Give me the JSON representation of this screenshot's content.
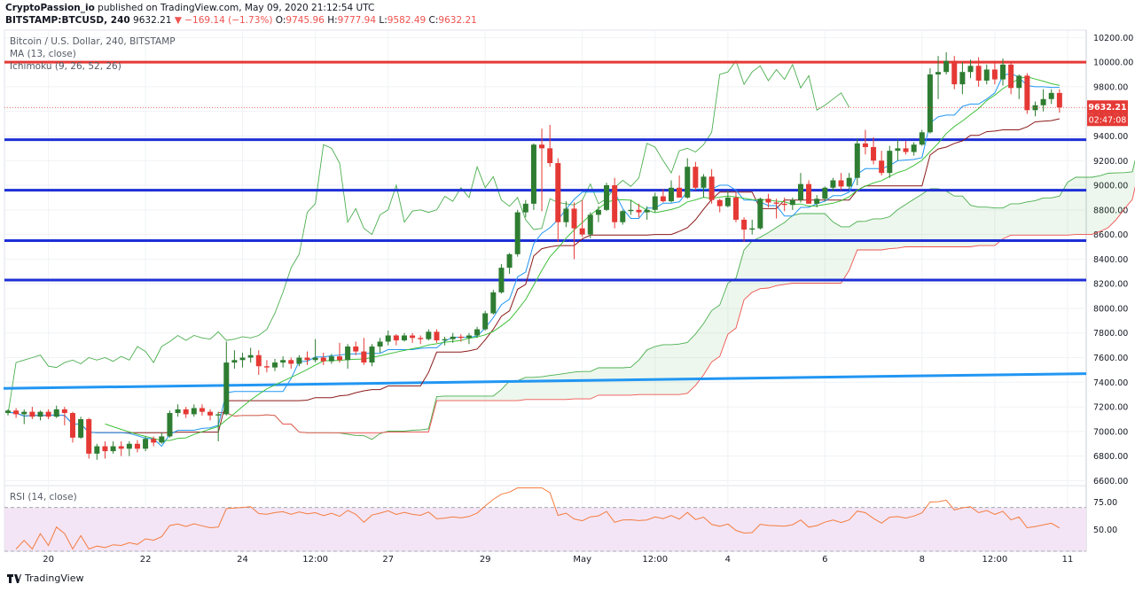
{
  "header": {
    "publisher": "CryptoPassion_io",
    "published_text": "published on TradingView.com, May 09, 2020 21:12:54 UTC",
    "symbol": "BITSTAMP:BTCUSD, 240",
    "last": "9632.21",
    "change": "▼ −169.14 (−1.73%)",
    "o_label": "O:",
    "o": "9745.96",
    "h_label": "H:",
    "h": "9777.94",
    "l_label": "L:",
    "l": "9582.49",
    "c_label": "C:",
    "c": "9632.21"
  },
  "legend": {
    "title": "Bitcoin / U.S. Dollar, 240, BITSTAMP",
    "ma": "MA (13, close)",
    "ichimoku": "Ichimoku (9, 26, 52, 26)",
    "rsi": "RSI (14, close)"
  },
  "footer": {
    "brand": "TradingView"
  },
  "colors": {
    "up": "#2e7d32",
    "down": "#e53935",
    "red_line": "#e53935",
    "blue_line": "#1d2fd6",
    "trend": "#2196f3",
    "ma": "#3fc13a",
    "conversion": "#2196f3",
    "base": "#8b1a1a",
    "lagging": "#4caf50",
    "span_a": "#4caf50",
    "span_b": "#ef5350",
    "rsi": "#f57c40",
    "rsi_band": "#f3e5f5"
  },
  "chart_data": {
    "type": "candlestick",
    "title": "Bitcoin / U.S. Dollar, 240, BITSTAMP",
    "ylim": [
      6560,
      10260
    ],
    "y_ticks": [
      "10200.00",
      "10000.00",
      "9800.00",
      "9600.00",
      "9400.00",
      "9200.00",
      "9000.00",
      "8800.00",
      "8600.00",
      "8400.00",
      "8200.00",
      "8000.00",
      "7800.00",
      "7600.00",
      "7400.00",
      "7200.00",
      "7000.00",
      "6800.00",
      "6600.00"
    ],
    "x_ticks": [
      {
        "label": "20",
        "i": 5
      },
      {
        "label": "22",
        "i": 17
      },
      {
        "label": "24",
        "i": 29
      },
      {
        "label": "12:00",
        "i": 38
      },
      {
        "label": "27",
        "i": 47
      },
      {
        "label": "29",
        "i": 59
      },
      {
        "label": "May",
        "i": 71
      },
      {
        "label": "12:00",
        "i": 80
      },
      {
        "label": "4",
        "i": 89
      },
      {
        "label": "6",
        "i": 101
      },
      {
        "label": "8",
        "i": 113
      },
      {
        "label": "12:00",
        "i": 122
      },
      {
        "label": "11",
        "i": 131
      }
    ],
    "bars_total": 135,
    "price_label": "9632.21",
    "countdown": "02:47:08",
    "horizontal_levels": [
      {
        "name": "resistance",
        "value": 10000,
        "color": "red"
      },
      {
        "name": "level",
        "value": 9370,
        "color": "blue"
      },
      {
        "name": "level",
        "value": 8960,
        "color": "blue"
      },
      {
        "name": "level",
        "value": 8550,
        "color": "blue"
      },
      {
        "name": "level",
        "value": 8230,
        "color": "blue"
      }
    ],
    "trendline": {
      "from": [
        0,
        7350
      ],
      "to": [
        134,
        7470
      ]
    },
    "candles": [
      [
        7150,
        7180,
        7130,
        7170
      ],
      [
        7170,
        7190,
        7110,
        7140
      ],
      [
        7140,
        7180,
        7060,
        7160
      ],
      [
        7160,
        7200,
        7100,
        7120
      ],
      [
        7120,
        7170,
        7090,
        7160
      ],
      [
        7160,
        7180,
        7100,
        7120
      ],
      [
        7120,
        7210,
        7110,
        7180
      ],
      [
        7180,
        7200,
        7050,
        7150
      ],
      [
        7150,
        7160,
        6910,
        6950
      ],
      [
        6950,
        7120,
        6940,
        7100
      ],
      [
        7100,
        7110,
        6780,
        6820
      ],
      [
        6820,
        6900,
        6770,
        6880
      ],
      [
        6880,
        6920,
        6780,
        6840
      ],
      [
        6840,
        6920,
        6820,
        6880
      ],
      [
        6880,
        6920,
        6800,
        6860
      ],
      [
        6860,
        6920,
        6800,
        6900
      ],
      [
        6900,
        6930,
        6830,
        6860
      ],
      [
        6860,
        6960,
        6840,
        6940
      ],
      [
        6940,
        6960,
        6880,
        6910
      ],
      [
        6910,
        6990,
        6900,
        6960
      ],
      [
        6960,
        7170,
        6950,
        7150
      ],
      [
        7150,
        7220,
        7120,
        7180
      ],
      [
        7180,
        7200,
        7110,
        7140
      ],
      [
        7140,
        7220,
        7120,
        7190
      ],
      [
        7190,
        7220,
        7130,
        7160
      ],
      [
        7160,
        7180,
        7090,
        7130
      ],
      [
        7130,
        7160,
        6920,
        7140
      ],
      [
        7140,
        7730,
        7130,
        7560
      ],
      [
        7560,
        7660,
        7510,
        7580
      ],
      [
        7580,
        7640,
        7520,
        7600
      ],
      [
        7600,
        7680,
        7560,
        7620
      ],
      [
        7620,
        7660,
        7460,
        7530
      ],
      [
        7530,
        7580,
        7480,
        7520
      ],
      [
        7520,
        7590,
        7490,
        7560
      ],
      [
        7560,
        7610,
        7520,
        7580
      ],
      [
        7580,
        7600,
        7510,
        7550
      ],
      [
        7550,
        7620,
        7530,
        7600
      ],
      [
        7600,
        7650,
        7540,
        7580
      ],
      [
        7580,
        7750,
        7560,
        7600
      ],
      [
        7600,
        7640,
        7540,
        7570
      ],
      [
        7570,
        7630,
        7550,
        7610
      ],
      [
        7610,
        7720,
        7560,
        7580
      ],
      [
        7580,
        7710,
        7510,
        7690
      ],
      [
        7690,
        7730,
        7620,
        7650
      ],
      [
        7650,
        7760,
        7540,
        7560
      ],
      [
        7560,
        7710,
        7530,
        7690
      ],
      [
        7690,
        7760,
        7640,
        7730
      ],
      [
        7730,
        7820,
        7700,
        7780
      ],
      [
        7780,
        7790,
        7700,
        7740
      ],
      [
        7740,
        7800,
        7730,
        7780
      ],
      [
        7780,
        7800,
        7720,
        7760
      ],
      [
        7760,
        7780,
        7710,
        7750
      ],
      [
        7750,
        7830,
        7740,
        7810
      ],
      [
        7810,
        7830,
        7720,
        7740
      ],
      [
        7740,
        7770,
        7700,
        7750
      ],
      [
        7750,
        7800,
        7720,
        7770
      ],
      [
        7770,
        7790,
        7730,
        7760
      ],
      [
        7760,
        7800,
        7710,
        7780
      ],
      [
        7780,
        7850,
        7760,
        7830
      ],
      [
        7830,
        7980,
        7820,
        7960
      ],
      [
        7960,
        8150,
        7950,
        8130
      ],
      [
        8130,
        8360,
        8120,
        8330
      ],
      [
        8330,
        8450,
        8280,
        8440
      ],
      [
        8440,
        8800,
        8420,
        8780
      ],
      [
        8780,
        8880,
        8740,
        8850
      ],
      [
        8850,
        9340,
        8800,
        9330
      ],
      [
        9330,
        9460,
        8790,
        9300
      ],
      [
        9300,
        9490,
        9150,
        9180
      ],
      [
        9180,
        9220,
        8540,
        8700
      ],
      [
        8700,
        8870,
        8660,
        8810
      ],
      [
        8810,
        8860,
        8400,
        8650
      ],
      [
        8650,
        8880,
        8580,
        8600
      ],
      [
        8600,
        8780,
        8570,
        8760
      ],
      [
        8760,
        8830,
        8700,
        8800
      ],
      [
        8800,
        9020,
        8790,
        9000
      ],
      [
        9000,
        9060,
        8650,
        8700
      ],
      [
        8700,
        8800,
        8680,
        8790
      ],
      [
        8790,
        8880,
        8760,
        8800
      ],
      [
        8800,
        8850,
        8740,
        8780
      ],
      [
        8780,
        8830,
        8720,
        8800
      ],
      [
        8800,
        8940,
        8780,
        8910
      ],
      [
        8910,
        8970,
        8860,
        8870
      ],
      [
        8870,
        9040,
        8860,
        8980
      ],
      [
        8980,
        9080,
        8900,
        8900
      ],
      [
        8900,
        9220,
        8890,
        9150
      ],
      [
        9150,
        9190,
        8960,
        8980
      ],
      [
        8980,
        9090,
        8900,
        9070
      ],
      [
        9070,
        9130,
        8850,
        8880
      ],
      [
        8880,
        8890,
        8780,
        8830
      ],
      [
        8830,
        8960,
        8820,
        8900
      ],
      [
        8900,
        8940,
        8700,
        8720
      ],
      [
        8720,
        8740,
        8540,
        8640
      ],
      [
        8640,
        8720,
        8600,
        8650
      ],
      [
        8650,
        8900,
        8640,
        8890
      ],
      [
        8890,
        8930,
        8820,
        8860
      ],
      [
        8860,
        8890,
        8730,
        8850
      ],
      [
        8850,
        8900,
        8790,
        8840
      ],
      [
        8840,
        8900,
        8800,
        8880
      ],
      [
        8880,
        9100,
        8860,
        9010
      ],
      [
        9010,
        9040,
        8850,
        8850
      ],
      [
        8850,
        8920,
        8820,
        8890
      ],
      [
        8890,
        8990,
        8870,
        8980
      ],
      [
        8980,
        9060,
        8950,
        9040
      ],
      [
        9040,
        9100,
        8960,
        8990
      ],
      [
        8990,
        9100,
        8970,
        9060
      ],
      [
        9060,
        9380,
        9000,
        9340
      ],
      [
        9340,
        9450,
        9250,
        9310
      ],
      [
        9310,
        9390,
        9170,
        9200
      ],
      [
        9200,
        9280,
        9080,
        9100
      ],
      [
        9100,
        9320,
        9060,
        9280
      ],
      [
        9280,
        9370,
        9200,
        9300
      ],
      [
        9300,
        9360,
        9250,
        9270
      ],
      [
        9270,
        9350,
        9240,
        9330
      ],
      [
        9330,
        9450,
        9320,
        9430
      ],
      [
        9430,
        9950,
        9420,
        9900
      ],
      [
        9900,
        10050,
        9700,
        9920
      ],
      [
        9920,
        10080,
        9900,
        10010
      ],
      [
        10010,
        10050,
        9780,
        9820
      ],
      [
        9820,
        10000,
        9740,
        9920
      ],
      [
        9920,
        10020,
        9870,
        9970
      ],
      [
        9970,
        10040,
        9800,
        9850
      ],
      [
        9850,
        9980,
        9820,
        9940
      ],
      [
        9940,
        10010,
        9820,
        9860
      ],
      [
        9860,
        10030,
        9810,
        9980
      ],
      [
        9980,
        10000,
        9740,
        9790
      ],
      [
        9790,
        9900,
        9700,
        9890
      ],
      [
        9890,
        9910,
        9580,
        9610
      ],
      [
        9610,
        9680,
        9560,
        9650
      ],
      [
        9650,
        9780,
        9600,
        9700
      ],
      [
        9700,
        9780,
        9660,
        9750
      ],
      [
        9750,
        9780,
        9590,
        9632
      ]
    ],
    "rsi": {
      "label": "RSI (14, close)",
      "ylim": [
        30,
        90
      ],
      "bands": [
        30,
        70
      ],
      "ticks": [
        "75.00",
        "50.00"
      ]
    }
  }
}
